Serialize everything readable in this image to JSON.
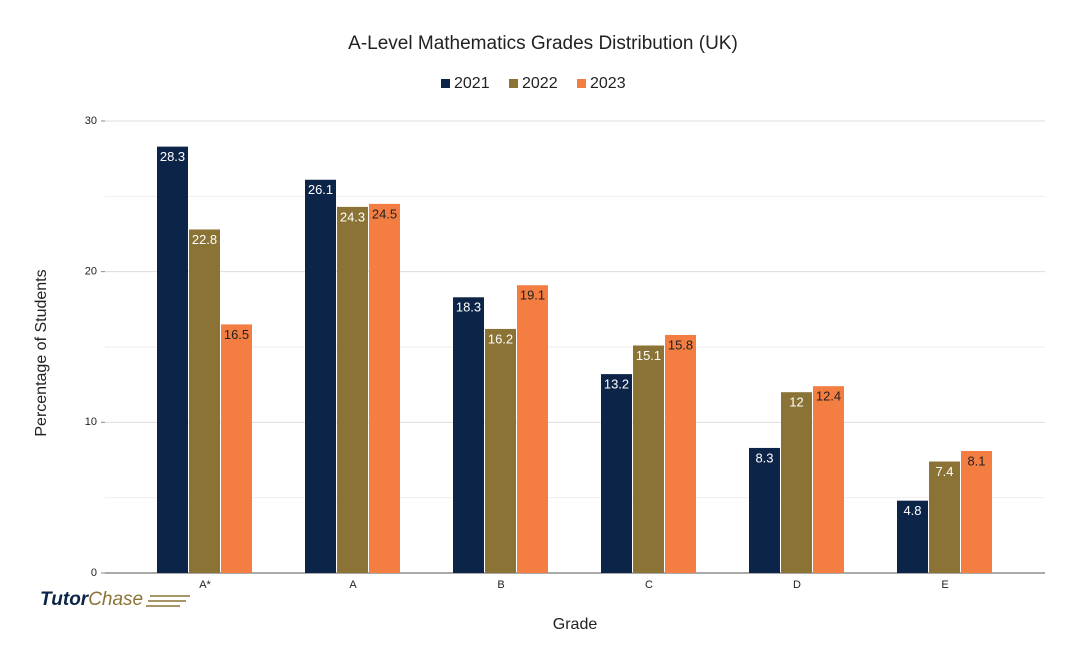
{
  "chart_data": {
    "type": "bar",
    "title": "A-Level Mathematics Grades Distribution (UK)",
    "x_label": "Grade",
    "y_label": "Percentage of Students",
    "categories": [
      "A*",
      "A",
      "B",
      "C",
      "D",
      "E"
    ],
    "series": [
      {
        "name": "2021",
        "color": "#0d2449",
        "values": [
          28.3,
          26.1,
          18.3,
          13.2,
          8.3,
          4.8
        ]
      },
      {
        "name": "2022",
        "color": "#8b7335",
        "values": [
          22.8,
          24.3,
          16.2,
          15.1,
          12,
          7.4
        ]
      },
      {
        "name": "2023",
        "color": "#f47e42",
        "values": [
          16.5,
          24.5,
          19.1,
          15.8,
          12.4,
          8.1
        ]
      }
    ],
    "ylim": [
      0,
      30
    ],
    "yticks": [
      0,
      10,
      20,
      30
    ],
    "y_minor_ticks": [
      5,
      15,
      25
    ],
    "grid": true,
    "legend": "top",
    "logo": [
      "Tutor",
      "Chase"
    ]
  }
}
